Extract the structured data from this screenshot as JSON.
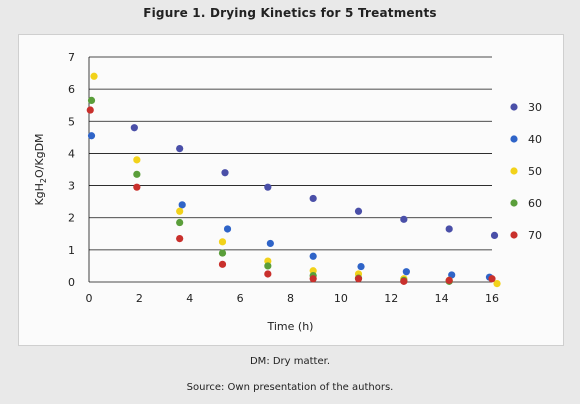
{
  "title": "Figure 1. Drying Kinetics for 5 Treatments",
  "note_dm": "DM: Dry matter.",
  "note_source": "Source: Own presentation of the authors.",
  "chart_data": {
    "type": "scatter",
    "title": "Figure 1. Drying Kinetics for 5 Treatments",
    "xlabel": "Time (h)",
    "ylabel_main": "KgH",
    "ylabel_sub": "2",
    "ylabel_rest": "O/KgDM",
    "xlim": [
      0,
      16
    ],
    "ylim": [
      0,
      7
    ],
    "x_ticks": [
      0,
      2,
      4,
      6,
      8,
      10,
      12,
      14,
      16
    ],
    "y_ticks": [
      0,
      1,
      2,
      3,
      4,
      5,
      6,
      7
    ],
    "grid": "horizontal",
    "legend_position": "right",
    "series": [
      {
        "name": "30",
        "color": "#4a4fa8",
        "points": [
          [
            1.8,
            4.8
          ],
          [
            3.6,
            4.15
          ],
          [
            5.4,
            3.4
          ],
          [
            7.1,
            2.95
          ],
          [
            8.9,
            2.6
          ],
          [
            10.7,
            2.2
          ],
          [
            12.5,
            1.95
          ],
          [
            14.3,
            1.65
          ],
          [
            16.1,
            1.45
          ]
        ]
      },
      {
        "name": "40",
        "color": "#2f64c8",
        "points": [
          [
            0.1,
            4.55
          ],
          [
            3.7,
            2.4
          ],
          [
            5.5,
            1.65
          ],
          [
            7.2,
            1.2
          ],
          [
            8.9,
            0.8
          ],
          [
            10.8,
            0.48
          ],
          [
            12.6,
            0.32
          ],
          [
            14.4,
            0.22
          ],
          [
            15.9,
            0.15
          ]
        ]
      },
      {
        "name": "50",
        "color": "#f2d21a",
        "points": [
          [
            0.2,
            6.4
          ],
          [
            1.9,
            3.8
          ],
          [
            3.6,
            2.2
          ],
          [
            5.3,
            1.25
          ],
          [
            7.1,
            0.65
          ],
          [
            8.9,
            0.35
          ],
          [
            10.7,
            0.25
          ],
          [
            12.5,
            0.1
          ],
          [
            14.3,
            0.05
          ],
          [
            16.2,
            -0.05
          ]
        ]
      },
      {
        "name": "60",
        "color": "#5a9e3a",
        "points": [
          [
            0.1,
            5.65
          ],
          [
            1.9,
            3.35
          ],
          [
            3.6,
            1.85
          ],
          [
            5.3,
            0.9
          ],
          [
            7.1,
            0.5
          ],
          [
            8.9,
            0.2
          ],
          [
            10.7,
            0.12
          ],
          [
            12.5,
            0.05
          ],
          [
            14.3,
            0.02
          ]
        ]
      },
      {
        "name": "70",
        "color": "#c9302c",
        "points": [
          [
            0.05,
            5.35
          ],
          [
            1.9,
            2.95
          ],
          [
            3.6,
            1.35
          ],
          [
            5.3,
            0.55
          ],
          [
            7.1,
            0.25
          ],
          [
            8.9,
            0.1
          ],
          [
            10.7,
            0.1
          ],
          [
            12.5,
            0.02
          ],
          [
            14.3,
            0.05
          ],
          [
            16.0,
            0.1
          ]
        ]
      }
    ]
  }
}
